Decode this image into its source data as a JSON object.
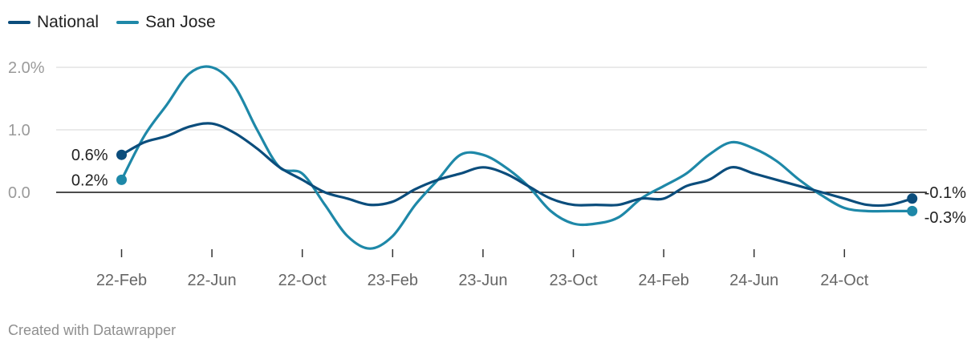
{
  "legend": {
    "items": [
      {
        "label": "National",
        "color": "#0b4d7c"
      },
      {
        "label": "San Jose",
        "color": "#1e88a8"
      }
    ]
  },
  "footer": {
    "credit": "Created with Datawrapper"
  },
  "chart_data": {
    "type": "line",
    "title": "",
    "xlabel": "",
    "ylabel": "",
    "x": [
      "2022-02",
      "2022-03",
      "2022-04",
      "2022-05",
      "2022-06",
      "2022-07",
      "2022-08",
      "2022-09",
      "2022-10",
      "2022-11",
      "2022-12",
      "2023-01",
      "2023-02",
      "2023-03",
      "2023-04",
      "2023-05",
      "2023-06",
      "2023-07",
      "2023-08",
      "2023-09",
      "2023-10",
      "2023-11",
      "2023-12",
      "2024-01",
      "2024-02",
      "2024-03",
      "2024-04",
      "2024-05",
      "2024-06",
      "2024-07",
      "2024-08",
      "2024-09",
      "2024-10",
      "2024-11",
      "2024-12",
      "2025-01"
    ],
    "x_ticks": [
      {
        "x": "2022-02",
        "label": "22-Feb"
      },
      {
        "x": "2022-06",
        "label": "22-Jun"
      },
      {
        "x": "2022-10",
        "label": "22-Oct"
      },
      {
        "x": "2023-02",
        "label": "23-Feb"
      },
      {
        "x": "2023-06",
        "label": "23-Jun"
      },
      {
        "x": "2023-10",
        "label": "23-Oct"
      },
      {
        "x": "2024-02",
        "label": "24-Feb"
      },
      {
        "x": "2024-06",
        "label": "24-Jun"
      },
      {
        "x": "2024-10",
        "label": "24-Oct"
      }
    ],
    "y_ticks": [
      {
        "value": 2.0,
        "label": "2.0%"
      },
      {
        "value": 1.0,
        "label": "1.0"
      },
      {
        "value": 0.0,
        "label": "0.0"
      }
    ],
    "ylim": [
      -0.9,
      2.05
    ],
    "grid": true,
    "legend_position": "top-left",
    "series": [
      {
        "name": "National",
        "color": "#0b4d7c",
        "values": [
          0.6,
          0.8,
          0.9,
          1.05,
          1.1,
          0.95,
          0.7,
          0.4,
          0.2,
          0.0,
          -0.1,
          -0.2,
          -0.15,
          0.05,
          0.2,
          0.3,
          0.4,
          0.3,
          0.1,
          -0.1,
          -0.2,
          -0.2,
          -0.2,
          -0.1,
          -0.1,
          0.1,
          0.2,
          0.4,
          0.3,
          0.2,
          0.1,
          0.0,
          -0.1,
          -0.2,
          -0.2,
          -0.1
        ],
        "end_labels": {
          "first": "0.6%",
          "last": "-0.1%"
        }
      },
      {
        "name": "San Jose",
        "color": "#1e88a8",
        "values": [
          0.2,
          0.9,
          1.4,
          1.9,
          2.0,
          1.7,
          1.0,
          0.4,
          0.3,
          -0.2,
          -0.7,
          -0.9,
          -0.7,
          -0.2,
          0.2,
          0.6,
          0.6,
          0.4,
          0.1,
          -0.3,
          -0.5,
          -0.5,
          -0.4,
          -0.1,
          0.1,
          0.3,
          0.6,
          0.8,
          0.7,
          0.5,
          0.2,
          -0.05,
          -0.25,
          -0.3,
          -0.3,
          -0.3
        ],
        "end_labels": {
          "first": "0.2%",
          "last": "-0.3%"
        }
      }
    ]
  }
}
